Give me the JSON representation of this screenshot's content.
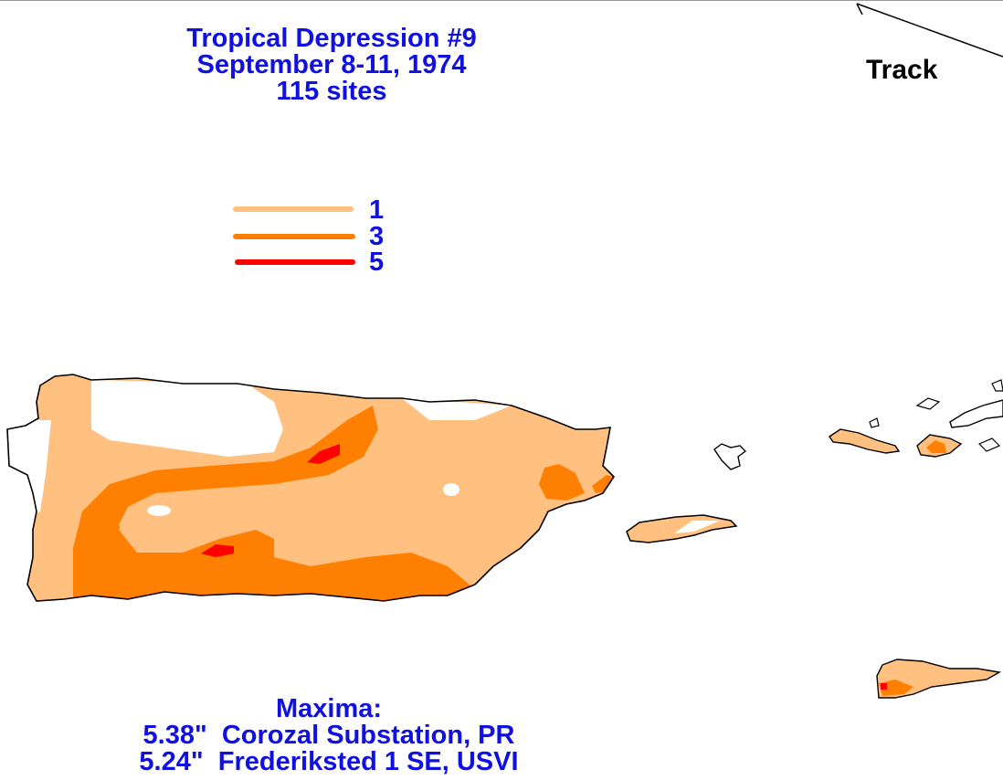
{
  "title": {
    "line1": "Tropical Depression #9",
    "line2": "September 8-11, 1974",
    "line3": "115 sites"
  },
  "track_label": "Track",
  "legend": {
    "items": [
      {
        "value": "1",
        "color": "#ffc080"
      },
      {
        "value": "3",
        "color": "#ff8000"
      },
      {
        "value": "5",
        "color": "#ff0000"
      }
    ]
  },
  "maxima": {
    "heading": "Maxima:",
    "entries": [
      {
        "amount": "5.38\"",
        "location": "Corozal Substation, PR"
      },
      {
        "amount": "5.24\"",
        "location": "Frederiksted 1 SE, USVI"
      }
    ]
  },
  "colors": {
    "text": "#1010e0",
    "coast": "#000000",
    "background": "#ffffff"
  }
}
